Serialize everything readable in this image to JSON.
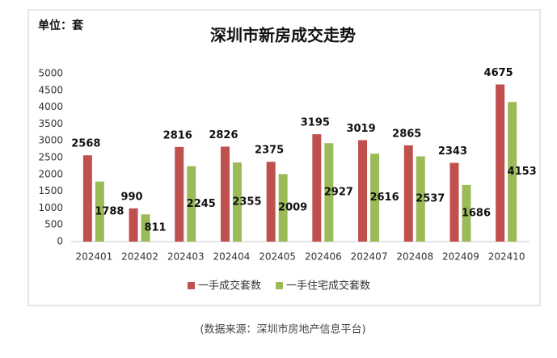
{
  "chart_data": {
    "type": "bar",
    "title": "深圳市新房成交走势",
    "unit_label": "单位：套",
    "categories": [
      "202401",
      "202402",
      "202403",
      "202404",
      "202405",
      "202406",
      "202407",
      "202408",
      "202409",
      "202410"
    ],
    "series": [
      {
        "name": "一手成交套数",
        "color": "#c0504d",
        "values": [
          2568,
          990,
          2816,
          2826,
          2375,
          3195,
          3019,
          2865,
          2343,
          4675
        ]
      },
      {
        "name": "一手住宅成交套数",
        "color": "#9bbb59",
        "values": [
          1788,
          811,
          2245,
          2355,
          2009,
          2927,
          2616,
          2537,
          1686,
          4153
        ]
      }
    ],
    "ylim": [
      0,
      5000
    ],
    "yticks": [
      0,
      500,
      1000,
      1500,
      2000,
      2500,
      3000,
      3500,
      4000,
      4500,
      5000
    ],
    "grid": false
  },
  "caption": "(数据来源：深圳市房地产信息平台)"
}
